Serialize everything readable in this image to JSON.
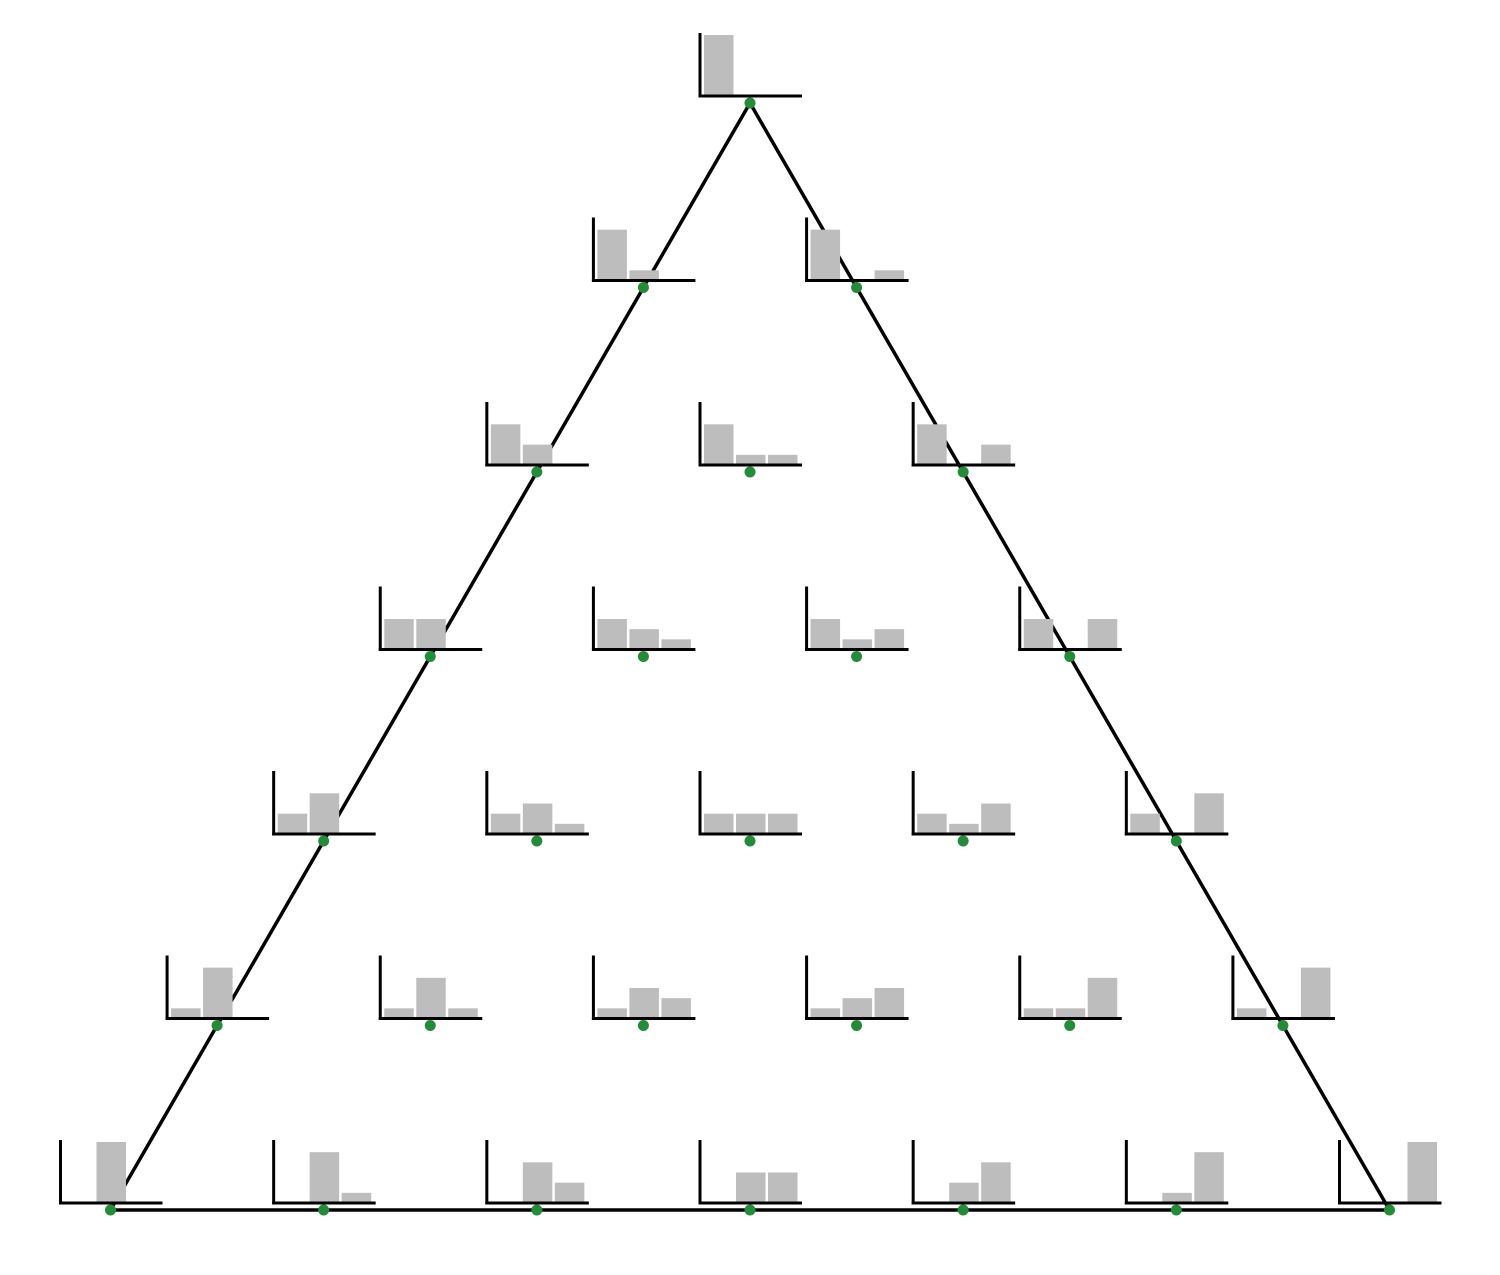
{
  "colors": {
    "background": "#ffffff",
    "simplex_edge": "#000000",
    "axis": "#000000",
    "bar": "#bdbdbd",
    "grid_point": "#238b3a"
  },
  "diagram": {
    "type": "simplex-grid-of-bar-histograms",
    "categories_per_histogram": 3,
    "resolution": 6,
    "points": [
      {
        "weights": [
          6,
          0,
          0
        ]
      },
      {
        "weights": [
          5,
          1,
          0
        ]
      },
      {
        "weights": [
          5,
          0,
          1
        ]
      },
      {
        "weights": [
          4,
          2,
          0
        ]
      },
      {
        "weights": [
          4,
          1,
          1
        ]
      },
      {
        "weights": [
          4,
          0,
          2
        ]
      },
      {
        "weights": [
          3,
          3,
          0
        ]
      },
      {
        "weights": [
          3,
          2,
          1
        ]
      },
      {
        "weights": [
          3,
          1,
          2
        ]
      },
      {
        "weights": [
          3,
          0,
          3
        ]
      },
      {
        "weights": [
          2,
          4,
          0
        ]
      },
      {
        "weights": [
          2,
          3,
          1
        ]
      },
      {
        "weights": [
          2,
          2,
          2
        ]
      },
      {
        "weights": [
          2,
          1,
          3
        ]
      },
      {
        "weights": [
          2,
          0,
          4
        ]
      },
      {
        "weights": [
          1,
          5,
          0
        ]
      },
      {
        "weights": [
          1,
          4,
          1
        ]
      },
      {
        "weights": [
          1,
          3,
          2
        ]
      },
      {
        "weights": [
          1,
          2,
          3
        ]
      },
      {
        "weights": [
          1,
          1,
          4
        ]
      },
      {
        "weights": [
          1,
          0,
          5
        ]
      },
      {
        "weights": [
          0,
          6,
          0
        ]
      },
      {
        "weights": [
          0,
          5,
          1
        ]
      },
      {
        "weights": [
          0,
          4,
          2
        ]
      },
      {
        "weights": [
          0,
          3,
          3
        ]
      },
      {
        "weights": [
          0,
          2,
          4
        ]
      },
      {
        "weights": [
          0,
          1,
          5
        ]
      },
      {
        "weights": [
          0,
          0,
          6
        ]
      }
    ]
  }
}
